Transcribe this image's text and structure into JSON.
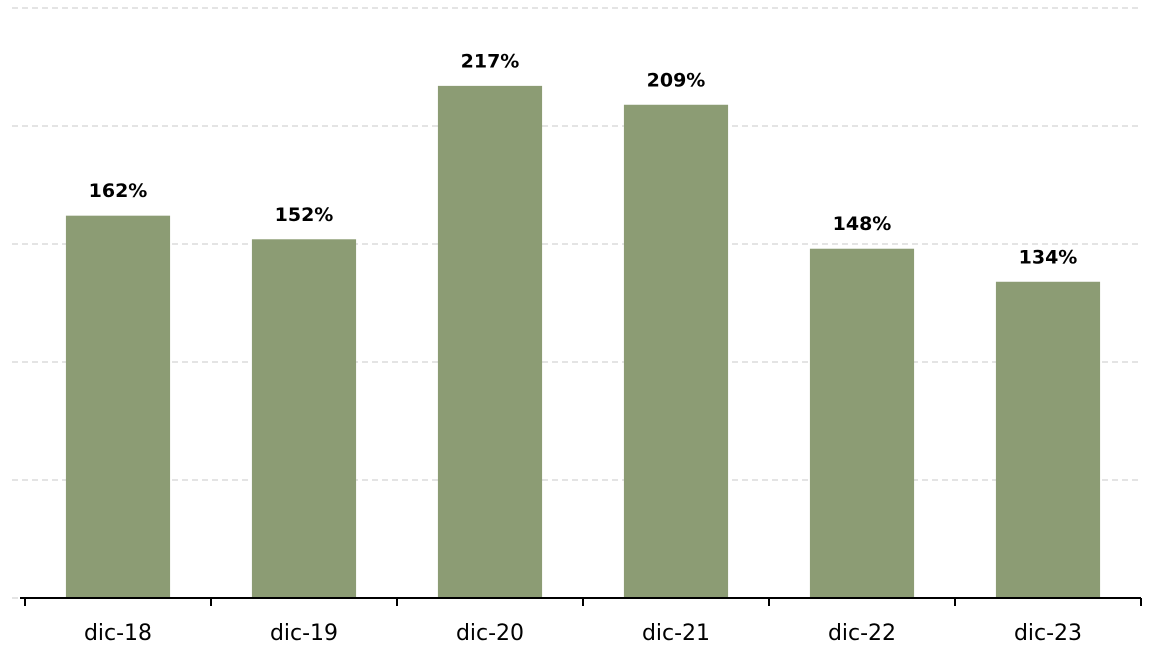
{
  "chart_data": {
    "type": "bar",
    "categories": [
      "dic-18",
      "dic-19",
      "dic-20",
      "dic-21",
      "dic-22",
      "dic-23"
    ],
    "values": [
      162,
      152,
      217,
      209,
      148,
      134
    ],
    "value_labels": [
      "162%",
      "152%",
      "217%",
      "209%",
      "148%",
      "134%"
    ],
    "color": "#8c9c74",
    "ylim": [
      0,
      250
    ],
    "yticks": [
      0,
      50,
      100,
      150,
      200,
      250
    ],
    "grid": true
  }
}
